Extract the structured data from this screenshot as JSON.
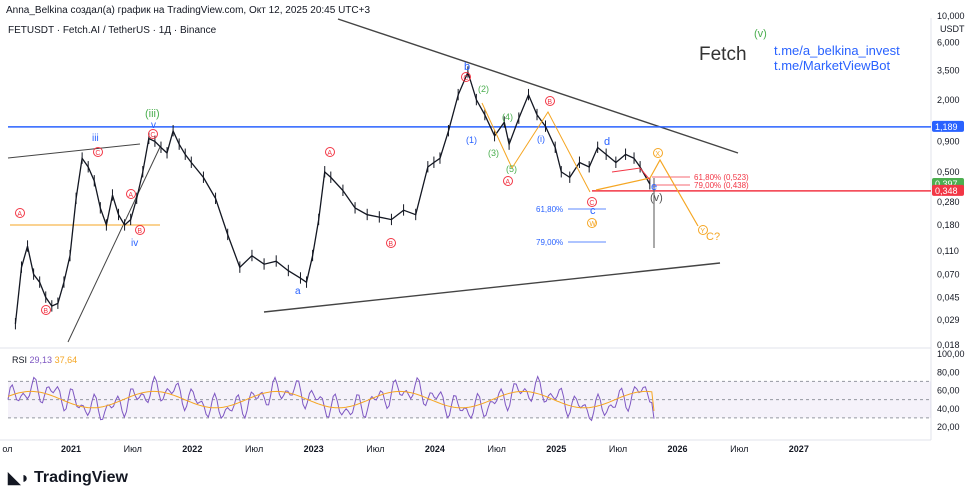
{
  "header": {
    "watermark": "Anna_Belkina создал(а) график на TradingView.com, Окт 12, 2025 20:45 UTC+3",
    "symbol": "FETUSDT · Fetch.AI / TetherUS · 1Д · Binance",
    "currency": "USDT"
  },
  "overlay": {
    "brand": "Fetch",
    "link1": "t.me/a_belkina_invest",
    "link2": "t.me/MarketViewBot"
  },
  "rsi": {
    "label": "RSI",
    "value1": "29,13",
    "value2": "37,64"
  },
  "footer": {
    "logo": "TradingView"
  },
  "colors": {
    "up": "#131722",
    "blue_line": "#2962ff",
    "red_line": "#f23645",
    "orange": "#f5a623",
    "green": "#4caf50",
    "purple": "#7e57c2"
  },
  "chart_data": {
    "type": "line",
    "title": "FETUSDT · Fetch.AI / TetherUS · 1Д · Binance",
    "price_scale": "log",
    "ylim": [
      0.018,
      11
    ],
    "y_ticks": [
      "10,000",
      "6,000",
      "3,500",
      "2,000",
      "1,189",
      "0,900",
      "0,500",
      "0,397",
      "0,348",
      "0,280",
      "0,180",
      "0,110",
      "0,070",
      "0,045",
      "0,029",
      "0,018"
    ],
    "x_ticks": [
      "ол",
      "2021",
      "Июл",
      "2022",
      "Июл",
      "2023",
      "Июл",
      "2024",
      "Июл",
      "2025",
      "Июл",
      "2026",
      "Июл",
      "2027"
    ],
    "series": [
      {
        "name": "FETUSDT close (approx.)",
        "x": [
          2020.55,
          2020.6,
          2020.65,
          2020.7,
          2020.75,
          2020.8,
          2020.85,
          2020.9,
          2020.95,
          2021.0,
          2021.05,
          2021.1,
          2021.15,
          2021.2,
          2021.25,
          2021.3,
          2021.35,
          2021.4,
          2021.45,
          2021.5,
          2021.55,
          2021.6,
          2021.65,
          2021.7,
          2021.75,
          2021.8,
          2021.85,
          2021.9,
          2021.95,
          2022.0,
          2022.1,
          2022.2,
          2022.3,
          2022.4,
          2022.5,
          2022.6,
          2022.7,
          2022.8,
          2022.9,
          2022.95,
          2023.0,
          2023.05,
          2023.1,
          2023.15,
          2023.25,
          2023.35,
          2023.45,
          2023.55,
          2023.65,
          2023.75,
          2023.85,
          2023.95,
          2024.0,
          2024.05,
          2024.12,
          2024.2,
          2024.28,
          2024.35,
          2024.42,
          2024.5,
          2024.58,
          2024.62,
          2024.7,
          2024.78,
          2024.85,
          2024.92,
          2025.0,
          2025.05,
          2025.12,
          2025.2,
          2025.28,
          2025.35,
          2025.42,
          2025.5,
          2025.58,
          2025.65,
          2025.7,
          2025.78
        ],
        "values": [
          0.027,
          0.08,
          0.12,
          0.07,
          0.06,
          0.045,
          0.038,
          0.04,
          0.06,
          0.1,
          0.3,
          0.65,
          0.55,
          0.42,
          0.25,
          0.18,
          0.32,
          0.22,
          0.18,
          0.2,
          0.3,
          0.5,
          0.95,
          0.9,
          0.8,
          0.72,
          1.1,
          0.85,
          0.7,
          0.6,
          0.45,
          0.3,
          0.15,
          0.08,
          0.1,
          0.085,
          0.09,
          0.075,
          0.065,
          0.06,
          0.1,
          0.2,
          0.5,
          0.45,
          0.35,
          0.25,
          0.22,
          0.21,
          0.2,
          0.24,
          0.22,
          0.55,
          0.6,
          0.65,
          1.1,
          2.2,
          3.4,
          2.0,
          1.5,
          1.0,
          1.3,
          0.85,
          1.4,
          2.2,
          1.5,
          1.2,
          0.8,
          0.5,
          0.45,
          0.6,
          0.55,
          0.8,
          0.7,
          0.6,
          0.7,
          0.65,
          0.55,
          0.397
        ]
      },
      {
        "name": "RSI 14",
        "last": 29.13
      },
      {
        "name": "RSI MA",
        "last": 37.64
      }
    ],
    "levels": [
      {
        "name": "Horizontal resistance",
        "value": 1.189
      },
      {
        "name": "Current price",
        "value": 0.397
      },
      {
        "name": "Horizontal support",
        "value": 0.348
      }
    ],
    "annotations": [
      "(iii)",
      "v",
      "iii",
      "iv",
      "a",
      "b",
      "c",
      "d",
      "e",
      "(v)",
      "(1)",
      "(2)",
      "(3)",
      "(4)",
      "(5)",
      "(i)",
      "Ⓐ",
      "Ⓑ",
      "Ⓒ",
      "Ⓧ",
      "Ⓨ",
      "Ⓦ",
      "Ⓨ",
      "C?",
      "(v)",
      "61,80% (0,523)",
      "79,00% (0,438)",
      "61,80%",
      "79,00%"
    ],
    "rsi_ticks": [
      "100,00",
      "80,00",
      "60,00",
      "40,00",
      "20,00"
    ]
  }
}
